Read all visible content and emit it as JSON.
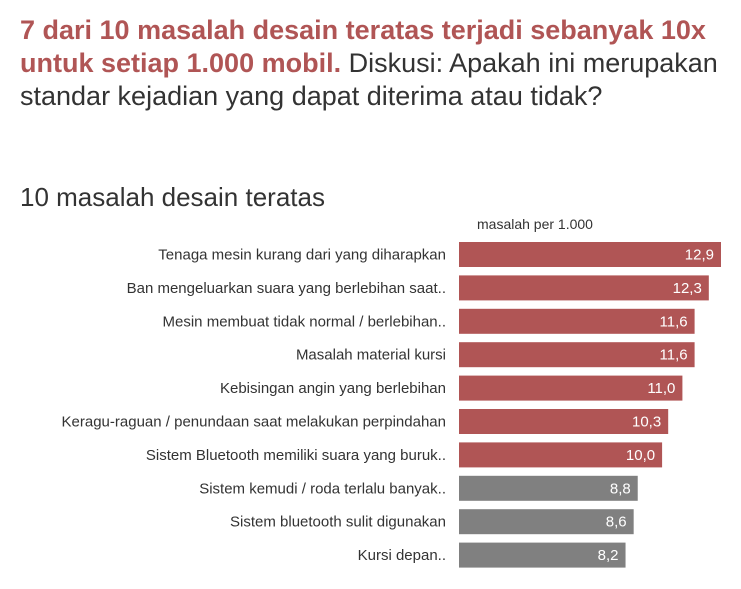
{
  "headline": {
    "bold": "7 dari 10 masalah desain teratas terjadi sebanyak 10x untuk setiap 1.000 mobil.",
    "rest": " Diskusi: Apakah ini merupakan standar kejadian yang dapat diterima atau tidak?"
  },
  "colors": {
    "highlight": "#b05555",
    "muted": "#808080",
    "text": "#333333"
  },
  "chart_data": {
    "type": "bar",
    "orientation": "horizontal",
    "title": "10 masalah desain teratas",
    "unit_label": "masalah per 1.000",
    "categories": [
      "Tenaga mesin kurang dari yang diharapkan",
      "Ban mengeluarkan suara yang berlebihan saat..",
      "Mesin membuat tidak normal / berlebihan..",
      "Masalah material kursi",
      "Kebisingan angin yang berlebihan",
      "Keragu-raguan / penundaan saat melakukan perpindahan",
      "Sistem Bluetooth memiliki suara yang buruk..",
      "Sistem kemudi / roda terlalu banyak..",
      "Sistem bluetooth sulit digunakan",
      "Kursi depan.."
    ],
    "values": [
      12.9,
      12.3,
      11.6,
      11.6,
      11.0,
      10.3,
      10.0,
      8.8,
      8.6,
      8.2
    ],
    "value_labels": [
      "12,9",
      "12,3",
      "11,6",
      "11,6",
      "11,0",
      "10,3",
      "10,0",
      "8,8",
      "8,6",
      "8,2"
    ],
    "highlighted": [
      true,
      true,
      true,
      true,
      true,
      true,
      true,
      false,
      false,
      false
    ],
    "xlim": [
      0,
      12.9
    ],
    "grid": false,
    "legend": "none"
  }
}
